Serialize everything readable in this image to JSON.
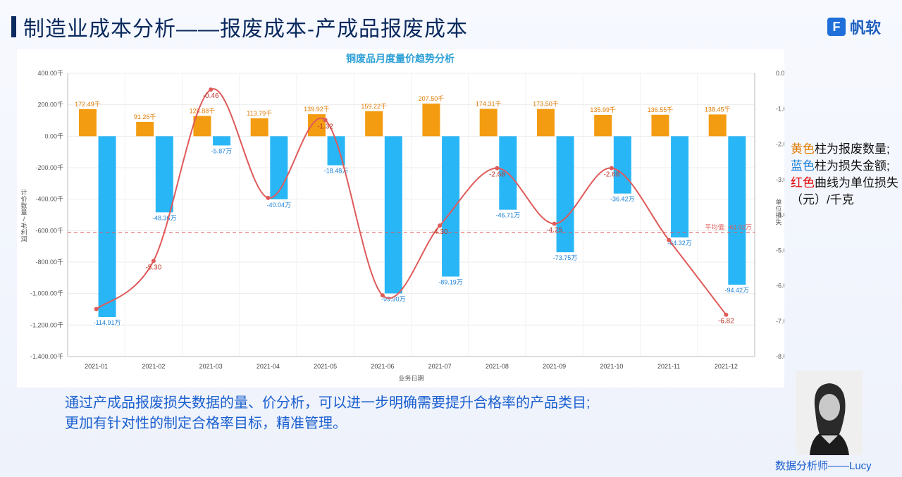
{
  "header": {
    "title": "制造业成本分析——报废成本-产成品报废成本",
    "logo_text": "帆软"
  },
  "side_note": {
    "yellow_word": "黄色",
    "yellow_rest": "柱为报废数量;",
    "blue_word": "蓝色",
    "blue_rest": "柱为损失金额;",
    "red_word": "红色",
    "red_rest": "曲线为单位损失（元）/千克"
  },
  "summary": {
    "line1": "通过产成品报废损失数据的量、价分析，可以进一步明确需要提升合格率的产品类目;",
    "line2": "更加有针对性的制定合格率目标，精准管理。"
  },
  "analyst": {
    "label": "数据分析师——Lucy"
  },
  "colors": {
    "quantity_bar": "#f39c12",
    "loss_bar": "#29b6f6",
    "unit_loss_line": "#e05a5a",
    "avg_line": "#e05a5a",
    "chart_title": "#2b9fd6"
  },
  "chart_data": {
    "type": "bar",
    "title": "铜废品月度量价趋势分析",
    "xlabel": "业务日期",
    "ylabel": "计价数量/毛利润",
    "y2label": "单位损失",
    "categories": [
      "2021-01",
      "2021-02",
      "2021-03",
      "2021-04",
      "2021-05",
      "2021-06",
      "2021-07",
      "2021-08",
      "2021-09",
      "2021-10",
      "2021-11",
      "2021-12"
    ],
    "ylim": [
      -1400,
      400
    ],
    "y_ticks": [
      "400.00千",
      "200.00千",
      "0.00千",
      "-200.00千",
      "-400.00千",
      "-600.00千",
      "-800.00千",
      "-1,000.00千",
      "-1,200.00千",
      "-1,400.00千"
    ],
    "y2lim": [
      -8,
      0
    ],
    "y2_ticks": [
      "0.00",
      "-1.00",
      "-2.00",
      "-3.00",
      "-4.00",
      "-5.00",
      "-6.00",
      "-7.00",
      "-8.00"
    ],
    "series": [
      {
        "type": "bar",
        "values": [
          172.49,
          91.26,
          128.88,
          113.79,
          139.92,
          159.22,
          207.5,
          174.31,
          173.5,
          135.99,
          136.55,
          138.45
        ],
        "labels": [
          "172.49千",
          "91.26千",
          "128.88千",
          "113.79千",
          "139.92千",
          "159.22千",
          "207.50千",
          "174.31千",
          "173.50千",
          "135.99千",
          "136.55千",
          "138.45千"
        ]
      },
      {
        "type": "bar",
        "values": [
          -1149.1,
          -483.6,
          -58.7,
          -400.4,
          -184.8,
          -999.0,
          -891.9,
          -467.1,
          -737.5,
          -364.2,
          -643.2,
          -944.2
        ],
        "labels": [
          "-114.91万",
          "-48.36万",
          "-5.87万",
          "-40.04万",
          "-18.48万",
          "-99.90万",
          "-89.19万",
          "-46.71万",
          "-73.75万",
          "-36.42万",
          "-64.32万",
          "-94.42万"
        ]
      },
      {
        "type": "line",
        "axis": "y2",
        "values": [
          -6.66,
          -5.3,
          -0.46,
          -3.52,
          -1.32,
          -6.27,
          -4.3,
          -2.68,
          -4.25,
          -2.68,
          -4.71,
          -6.82
        ],
        "labels": [
          "",
          "-5.30",
          "-0.46",
          "",
          "-1.32",
          "",
          "-4.30",
          "-2.68",
          "-4.25",
          "-2.68",
          "",
          "-6.82"
        ]
      }
    ],
    "average": {
      "value": -610.2,
      "label": "平均值: -61.02万"
    },
    "legend": "none",
    "grid": true
  }
}
